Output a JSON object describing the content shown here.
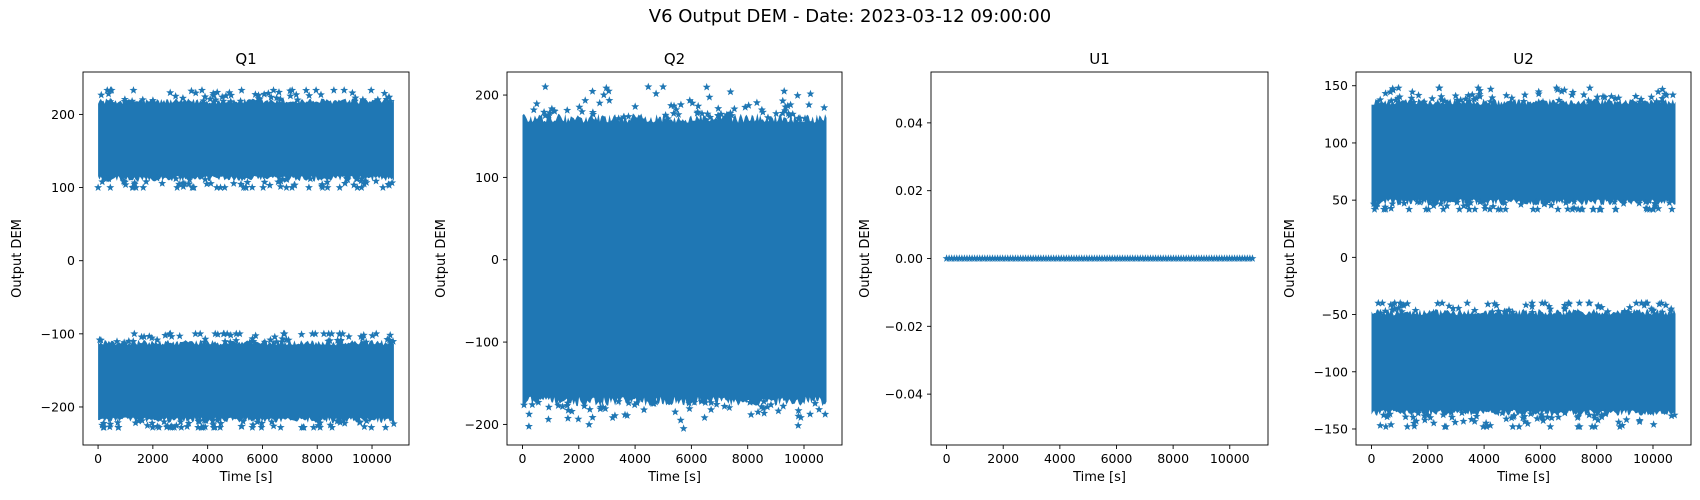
{
  "figure": {
    "suptitle": "V6 Output DEM - Date: 2023-03-12 09:00:00"
  },
  "colors": {
    "series": "#1f77b4",
    "axes": "#000000",
    "background": "#ffffff"
  },
  "chart_data": [
    {
      "type": "scatter",
      "title": "Q1",
      "xlabel": "Time [s]",
      "ylabel": "Output DEM",
      "marker": "star",
      "xlim": [
        -550,
        11350
      ],
      "ylim": [
        -252,
        258
      ],
      "xticks": [
        0,
        2000,
        4000,
        6000,
        8000,
        10000
      ],
      "yticks": [
        -200,
        -100,
        0,
        100,
        200
      ],
      "x_range": [
        0,
        10800
      ],
      "bands": [
        {
          "center": 165,
          "halfwidth": 45,
          "edge_noise": 12,
          "min": 100,
          "max": 233
        },
        {
          "center": -165,
          "halfwidth": 45,
          "edge_noise": 12,
          "min": -228,
          "max": -100
        }
      ]
    },
    {
      "type": "scatter",
      "title": "Q2",
      "xlabel": "Time [s]",
      "ylabel": "Output DEM",
      "marker": "star",
      "xlim": [
        -550,
        11350
      ],
      "ylim": [
        -225,
        228
      ],
      "xticks": [
        0,
        2000,
        4000,
        6000,
        8000,
        10000
      ],
      "yticks": [
        -200,
        -100,
        0,
        100,
        200
      ],
      "x_range": [
        0,
        10800
      ],
      "bands": [
        {
          "center": 0,
          "halfwidth": 160,
          "edge_noise": 18,
          "min": -205,
          "max": 210
        }
      ]
    },
    {
      "type": "scatter",
      "title": "U1",
      "xlabel": "Time [s]",
      "ylabel": "Output DEM",
      "marker": "star",
      "xlim": [
        -550,
        11350
      ],
      "ylim": [
        -0.055,
        0.055
      ],
      "xticks": [
        0,
        2000,
        4000,
        6000,
        8000,
        10000
      ],
      "yticks": [
        -0.04,
        -0.02,
        0.0,
        0.02,
        0.04
      ],
      "ytick_labels": [
        "−0.04",
        "−0.02",
        "0.00",
        "0.02",
        "0.04"
      ],
      "x_range": [
        0,
        10800
      ],
      "bands": [
        {
          "center": 0,
          "halfwidth": 0,
          "edge_noise": 0,
          "min": 0,
          "max": 0
        }
      ]
    },
    {
      "type": "scatter",
      "title": "U2",
      "xlabel": "Time [s]",
      "ylabel": "Output DEM",
      "marker": "star",
      "xlim": [
        -550,
        11350
      ],
      "ylim": [
        -164,
        162
      ],
      "xticks": [
        0,
        2000,
        4000,
        6000,
        8000,
        10000
      ],
      "yticks": [
        -150,
        -100,
        -50,
        0,
        50,
        100,
        150
      ],
      "x_range": [
        0,
        10800
      ],
      "bands": [
        {
          "center": 92,
          "halfwidth": 38,
          "edge_noise": 9,
          "min": 42,
          "max": 148
        },
        {
          "center": -92,
          "halfwidth": 38,
          "edge_noise": 9,
          "min": -148,
          "max": -40
        }
      ]
    }
  ]
}
